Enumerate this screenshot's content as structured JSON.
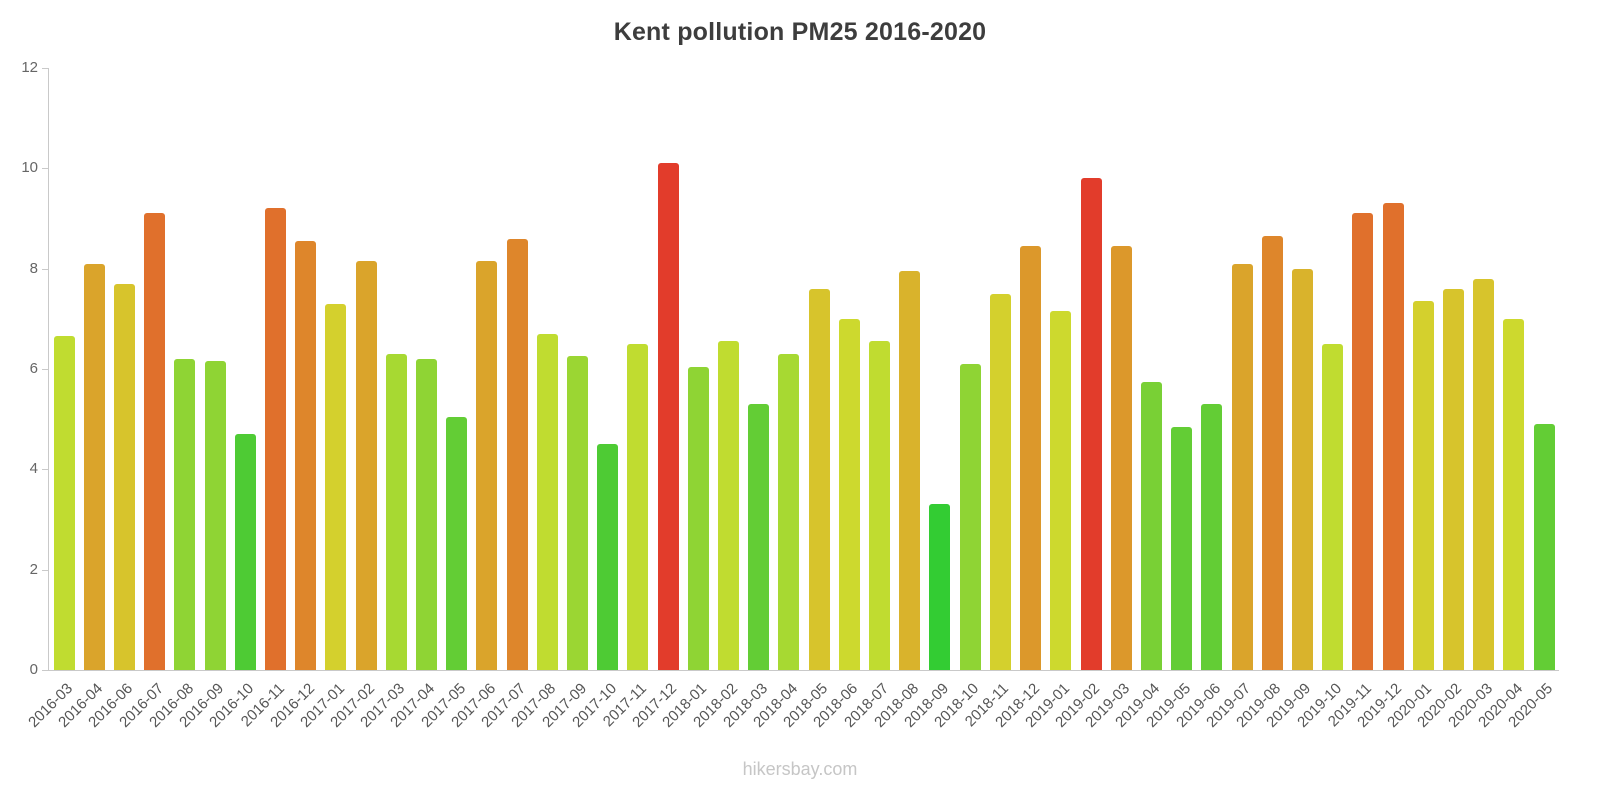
{
  "page": {
    "watermark": "hikersbay.com"
  },
  "chart_data": {
    "type": "bar",
    "title": "Kent pollution PM25 2016-2020",
    "xlabel": "",
    "ylabel": "",
    "ylim": [
      0,
      12
    ],
    "yticks": [
      0,
      2,
      4,
      6,
      8,
      10,
      12
    ],
    "grid": false,
    "legend": false,
    "categories": [
      "2016-03",
      "2016-04",
      "2016-06",
      "2016-07",
      "2016-08",
      "2016-09",
      "2016-10",
      "2016-11",
      "2016-12",
      "2017-01",
      "2017-02",
      "2017-03",
      "2017-04",
      "2017-05",
      "2017-06",
      "2017-07",
      "2017-08",
      "2017-09",
      "2017-10",
      "2017-11",
      "2017-12",
      "2018-01",
      "2018-02",
      "2018-03",
      "2018-04",
      "2018-05",
      "2018-06",
      "2018-07",
      "2018-08",
      "2018-09",
      "2018-10",
      "2018-11",
      "2018-12",
      "2019-01",
      "2019-02",
      "2019-03",
      "2019-04",
      "2019-05",
      "2019-06",
      "2019-07",
      "2019-08",
      "2019-09",
      "2019-10",
      "2019-11",
      "2019-12",
      "2020-01",
      "2020-02",
      "2020-03",
      "2020-04",
      "2020-05"
    ],
    "values": [
      6.65,
      8.1,
      7.7,
      9.1,
      6.2,
      6.15,
      4.7,
      9.2,
      8.55,
      7.3,
      8.15,
      6.3,
      6.2,
      5.05,
      8.15,
      8.6,
      6.7,
      6.25,
      4.5,
      6.5,
      10.1,
      6.05,
      6.55,
      5.3,
      6.3,
      7.6,
      7.0,
      6.55,
      7.95,
      3.3,
      6.1,
      7.5,
      8.45,
      7.15,
      9.8,
      8.45,
      5.75,
      4.85,
      5.3,
      8.1,
      8.65,
      8.0,
      6.5,
      9.1,
      9.3,
      7.35,
      7.6,
      7.8,
      7.0,
      4.9
    ],
    "colors": [
      "#c0dc30",
      "#daa42b",
      "#d7c42c",
      "#e0702c",
      "#8fd434",
      "#8fd434",
      "#4ecb34",
      "#e0702c",
      "#de862b",
      "#d4d02d",
      "#daa42b",
      "#a7d932",
      "#8fd434",
      "#63cd35",
      "#daa42b",
      "#de862b",
      "#c0dc30",
      "#9bd633",
      "#4ecb34",
      "#c0dc30",
      "#e23c2b",
      "#8fd434",
      "#c0dc30",
      "#63cd35",
      "#a7d932",
      "#d7c42c",
      "#cdd92e",
      "#c0dc30",
      "#d9b32c",
      "#33cc33",
      "#8fd434",
      "#d4d02d",
      "#dc982b",
      "#cdd92e",
      "#e23c2b",
      "#dc982b",
      "#79d035",
      "#63cd35",
      "#63cd35",
      "#daa42b",
      "#de862b",
      "#d9b32c",
      "#c0dc30",
      "#e0702c",
      "#e0702c",
      "#d4d02d",
      "#d7c42c",
      "#d7c42c",
      "#cdd92e",
      "#63cd35"
    ]
  }
}
